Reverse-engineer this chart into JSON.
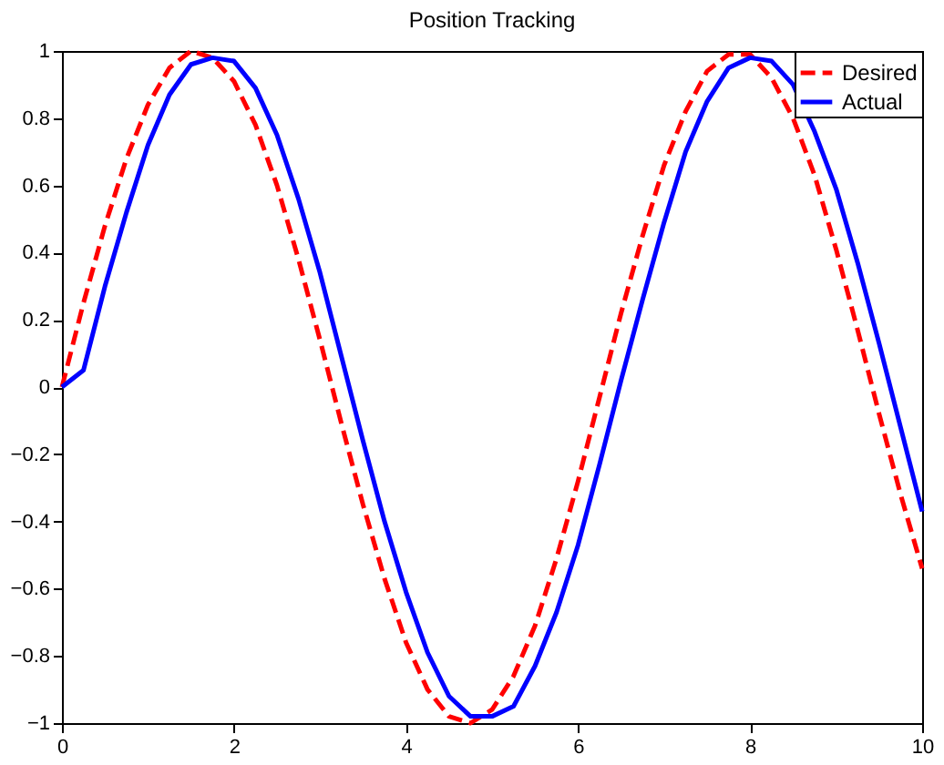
{
  "chart_data": {
    "type": "line",
    "title": "Position Tracking",
    "x": [
      0,
      0.25,
      0.5,
      0.75,
      1,
      1.25,
      1.5,
      1.75,
      2,
      2.25,
      2.5,
      2.75,
      3,
      3.25,
      3.5,
      3.75,
      4,
      4.25,
      4.5,
      4.75,
      5,
      5.25,
      5.5,
      5.75,
      6,
      6.25,
      6.5,
      6.75,
      7,
      7.25,
      7.5,
      7.75,
      8,
      8.25,
      8.5,
      8.75,
      9,
      9.25,
      9.5,
      9.75,
      10
    ],
    "series": [
      {
        "name": "Desired",
        "color": "#ff0000",
        "line_style": "dashed",
        "values": [
          0,
          0.25,
          0.48,
          0.68,
          0.84,
          0.95,
          1.0,
          0.98,
          0.91,
          0.78,
          0.6,
          0.38,
          0.14,
          -0.11,
          -0.35,
          -0.57,
          -0.76,
          -0.9,
          -0.98,
          -1.0,
          -0.96,
          -0.86,
          -0.71,
          -0.51,
          -0.28,
          -0.03,
          0.22,
          0.45,
          0.66,
          0.82,
          0.94,
          0.99,
          0.99,
          0.92,
          0.8,
          0.63,
          0.41,
          0.17,
          -0.08,
          -0.32,
          -0.54
        ]
      },
      {
        "name": "Actual",
        "color": "#0000ff",
        "line_style": "solid",
        "values": [
          0,
          0.05,
          0.3,
          0.52,
          0.72,
          0.87,
          0.96,
          0.98,
          0.97,
          0.89,
          0.75,
          0.56,
          0.34,
          0.09,
          -0.16,
          -0.4,
          -0.61,
          -0.79,
          -0.92,
          -0.98,
          -0.98,
          -0.95,
          -0.83,
          -0.67,
          -0.47,
          -0.23,
          0.02,
          0.26,
          0.49,
          0.7,
          0.85,
          0.95,
          0.98,
          0.97,
          0.9,
          0.76,
          0.59,
          0.37,
          0.13,
          -0.12,
          -0.37
        ]
      }
    ],
    "xlim": [
      0,
      10
    ],
    "xticks": [
      0,
      2,
      4,
      6,
      8,
      10
    ],
    "ylim": [
      -1,
      1
    ],
    "yticks": [
      -1,
      -0.8,
      -0.6,
      -0.4,
      -0.2,
      0,
      0.2,
      0.4,
      0.6,
      0.8,
      1
    ],
    "grid": false,
    "legend": "top right",
    "marker": "none"
  }
}
